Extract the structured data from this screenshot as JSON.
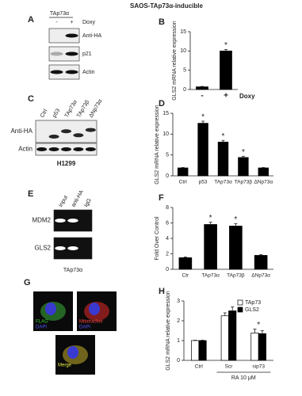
{
  "figure_title": "SAOS-TAp73α-inducible",
  "blots": [
    {
      "panel": "A",
      "header": "TAp73α",
      "lanes": [
        "-",
        "+"
      ],
      "lane_title": "Doxy",
      "rows": [
        "Anti-HA",
        "p21",
        "Actin"
      ]
    },
    {
      "panel": "C",
      "lanes": [
        "Ctrl",
        "p53",
        "TAp73α",
        "TAp73β",
        "ΔNp73α"
      ],
      "rows": [
        "Anti-HA",
        "Actin"
      ],
      "footer": "H1299"
    },
    {
      "panel": "E",
      "lanes": [
        "Input",
        "anti-HA",
        "IgG"
      ],
      "rows": [
        "MDM2",
        "GLS2"
      ],
      "footer": "TAp73α"
    }
  ],
  "images": {
    "panel": "G",
    "tiles": [
      {
        "labels": [
          "FLAG",
          "DAPI"
        ]
      },
      {
        "labels": [
          "Mitotracker",
          "DAPI"
        ]
      },
      {
        "labels": [
          "Merge"
        ]
      }
    ]
  },
  "chart_data": [
    {
      "type": "bar",
      "panel": "B",
      "y_label": "GLS2 mRNA relative expression",
      "categories": [
        "-",
        "+"
      ],
      "x_label": "Doxy",
      "values": [
        0.7,
        10
      ],
      "errors": [
        0.1,
        0.4
      ],
      "markers": [
        null,
        "*"
      ],
      "color": "#000000",
      "ylim": [
        0,
        15
      ],
      "yticks": [
        0,
        5,
        10,
        15
      ]
    },
    {
      "type": "bar",
      "panel": "D",
      "y_label": "GLS2 mRNA relative expression",
      "categories": [
        "Ctrl",
        "p53",
        "TAp73α",
        "TAp73β",
        "ΔNp73α"
      ],
      "values": [
        1.9,
        12.6,
        8.1,
        4.4,
        1.9
      ],
      "errors": [
        0.1,
        0.5,
        0.4,
        0.3,
        0.1
      ],
      "markers": [
        null,
        "*",
        "*",
        "*",
        null
      ],
      "color": "#000000",
      "ylim": [
        0,
        15
      ],
      "yticks": [
        0,
        5,
        10,
        15
      ]
    },
    {
      "type": "bar",
      "panel": "F",
      "y_label": "Fold Over Control",
      "categories": [
        "Ctr",
        "TAp73α",
        "TAp73β",
        "ΔNp73α"
      ],
      "values": [
        1.5,
        5.8,
        5.6,
        1.8
      ],
      "errors": [
        0.1,
        0.3,
        0.3,
        0.1
      ],
      "markers": [
        null,
        "*",
        "*",
        null
      ],
      "color": "#000000",
      "ylim": [
        0,
        8
      ],
      "yticks": [
        0,
        2,
        4,
        6,
        8
      ]
    },
    {
      "type": "bar",
      "panel": "H",
      "y_label": "GLS2 mRNA relative expression",
      "categories": [
        "Ctrl",
        "Scr",
        "sip73"
      ],
      "group_label": "RA 10 μM",
      "series": [
        {
          "name": "TAp73",
          "color": "#ffffff",
          "values": [
            1,
            2.25,
            1.38
          ],
          "errors": [
            0.02,
            0.15,
            0.2
          ]
        },
        {
          "name": "GLS2",
          "color": "#000000",
          "values": [
            1,
            2.5,
            1.35
          ],
          "errors": [
            0.02,
            0.2,
            0.15
          ]
        }
      ],
      "markers": [
        null,
        null,
        "*"
      ],
      "ylim": [
        0,
        3
      ],
      "yticks": [
        0,
        1,
        2,
        3
      ],
      "legend": "top-right"
    }
  ]
}
